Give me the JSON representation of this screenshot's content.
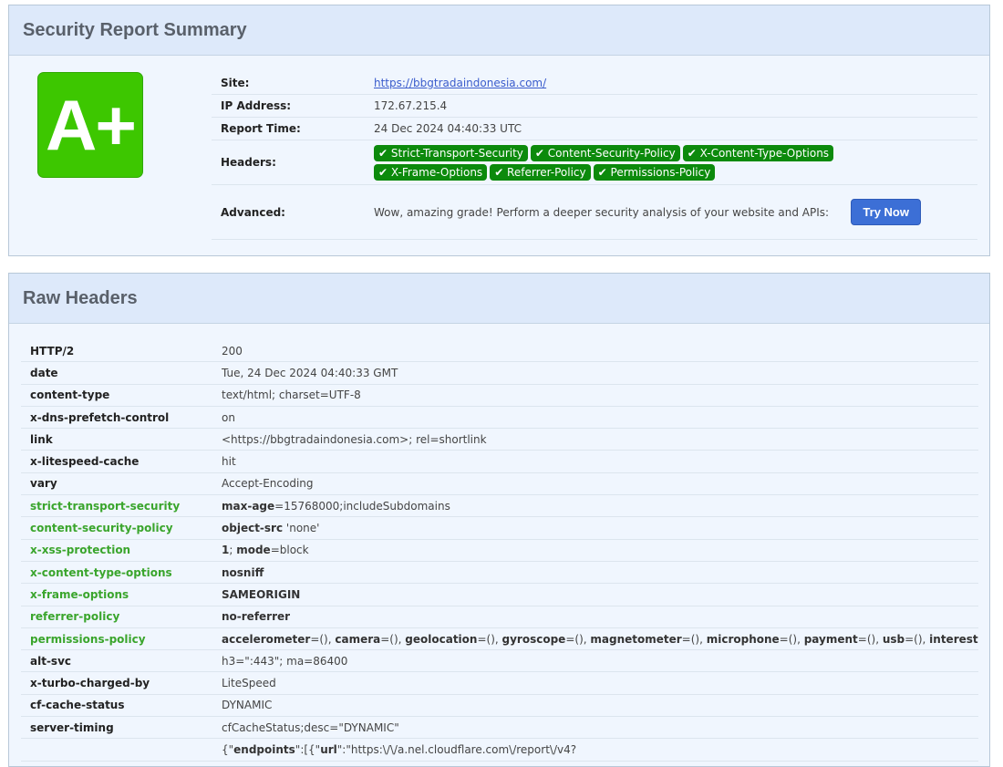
{
  "summary": {
    "title": "Security Report Summary",
    "grade": "A+",
    "grade_color": "#3dc700",
    "site_label": "Site:",
    "site": "https://bbgtradaindonesia.com/",
    "ip_label": "IP Address:",
    "ip": "172.67.215.4",
    "time_label": "Report Time:",
    "time": "24 Dec 2024 04:40:33 UTC",
    "headers_label": "Headers:",
    "headers": [
      "✔ Strict-Transport-Security",
      "✔ Content-Security-Policy",
      "✔ X-Content-Type-Options",
      "✔ X-Frame-Options",
      "✔ Referrer-Policy",
      "✔ Permissions-Policy"
    ],
    "advanced_label": "Advanced:",
    "advanced_text": "Wow, amazing grade! Perform a deeper security analysis of your website and APIs:",
    "try_now": "Try Now"
  },
  "raw": {
    "title": "Raw Headers",
    "rows": [
      {
        "key": "HTTP/2",
        "sec": false,
        "value": [
          {
            "t": "200"
          }
        ]
      },
      {
        "key": "date",
        "sec": false,
        "value": [
          {
            "t": "Tue, 24 Dec 2024 04:40:33 GMT"
          }
        ]
      },
      {
        "key": "content-type",
        "sec": false,
        "value": [
          {
            "t": "text/html; charset=UTF-8"
          }
        ]
      },
      {
        "key": "x-dns-prefetch-control",
        "sec": false,
        "value": [
          {
            "t": "on"
          }
        ]
      },
      {
        "key": "link",
        "sec": false,
        "value": [
          {
            "t": "<https://bbgtradaindonesia.com>; rel=shortlink"
          }
        ]
      },
      {
        "key": "x-litespeed-cache",
        "sec": false,
        "value": [
          {
            "t": "hit"
          }
        ]
      },
      {
        "key": "vary",
        "sec": false,
        "value": [
          {
            "t": "Accept-Encoding"
          }
        ]
      },
      {
        "key": "strict-transport-security",
        "sec": true,
        "value": [
          {
            "t": "max-age",
            "b": true
          },
          {
            "t": "=15768000;includeSubdomains"
          }
        ]
      },
      {
        "key": "content-security-policy",
        "sec": true,
        "value": [
          {
            "t": "object-src",
            "b": true
          },
          {
            "t": " 'none'"
          }
        ]
      },
      {
        "key": "x-xss-protection",
        "sec": true,
        "value": [
          {
            "t": "1",
            "b": true
          },
          {
            "t": "; "
          },
          {
            "t": "mode",
            "b": true
          },
          {
            "t": "=block"
          }
        ]
      },
      {
        "key": "x-content-type-options",
        "sec": true,
        "value": [
          {
            "t": "nosniff",
            "b": true
          }
        ]
      },
      {
        "key": "x-frame-options",
        "sec": true,
        "value": [
          {
            "t": "SAMEORIGIN",
            "b": true
          }
        ]
      },
      {
        "key": "referrer-policy",
        "sec": true,
        "value": [
          {
            "t": "no-referrer",
            "b": true
          }
        ]
      },
      {
        "key": "permissions-policy",
        "sec": true,
        "value": [
          {
            "t": "accelerometer",
            "b": true
          },
          {
            "t": "=(), "
          },
          {
            "t": "camera",
            "b": true
          },
          {
            "t": "=(), "
          },
          {
            "t": "geolocation",
            "b": true
          },
          {
            "t": "=(), "
          },
          {
            "t": "gyroscope",
            "b": true
          },
          {
            "t": "=(), "
          },
          {
            "t": "magnetometer",
            "b": true
          },
          {
            "t": "=(), "
          },
          {
            "t": "microphone",
            "b": true
          },
          {
            "t": "=(), "
          },
          {
            "t": "payment",
            "b": true
          },
          {
            "t": "=(), "
          },
          {
            "t": "usb",
            "b": true
          },
          {
            "t": "=(), "
          },
          {
            "t": "interest-cohort",
            "b": true
          },
          {
            "t": "=()"
          }
        ]
      },
      {
        "key": "alt-svc",
        "sec": false,
        "value": [
          {
            "t": "h3=\":443\"; ma=86400"
          }
        ]
      },
      {
        "key": "x-turbo-charged-by",
        "sec": false,
        "value": [
          {
            "t": "LiteSpeed"
          }
        ]
      },
      {
        "key": "cf-cache-status",
        "sec": false,
        "value": [
          {
            "t": "DYNAMIC"
          }
        ]
      },
      {
        "key": "server-timing",
        "sec": false,
        "value": [
          {
            "t": "cfCacheStatus;desc=\"DYNAMIC\""
          }
        ]
      },
      {
        "key": "",
        "sec": false,
        "value": [
          {
            "t": "{\""
          },
          {
            "t": "endpoints",
            "b": true
          },
          {
            "t": "\":[{\""
          },
          {
            "t": "url",
            "b": true
          },
          {
            "t": "\":\"https:\\/\\/a.nel.cloudflare.com\\/report\\/v4?"
          }
        ]
      }
    ]
  }
}
